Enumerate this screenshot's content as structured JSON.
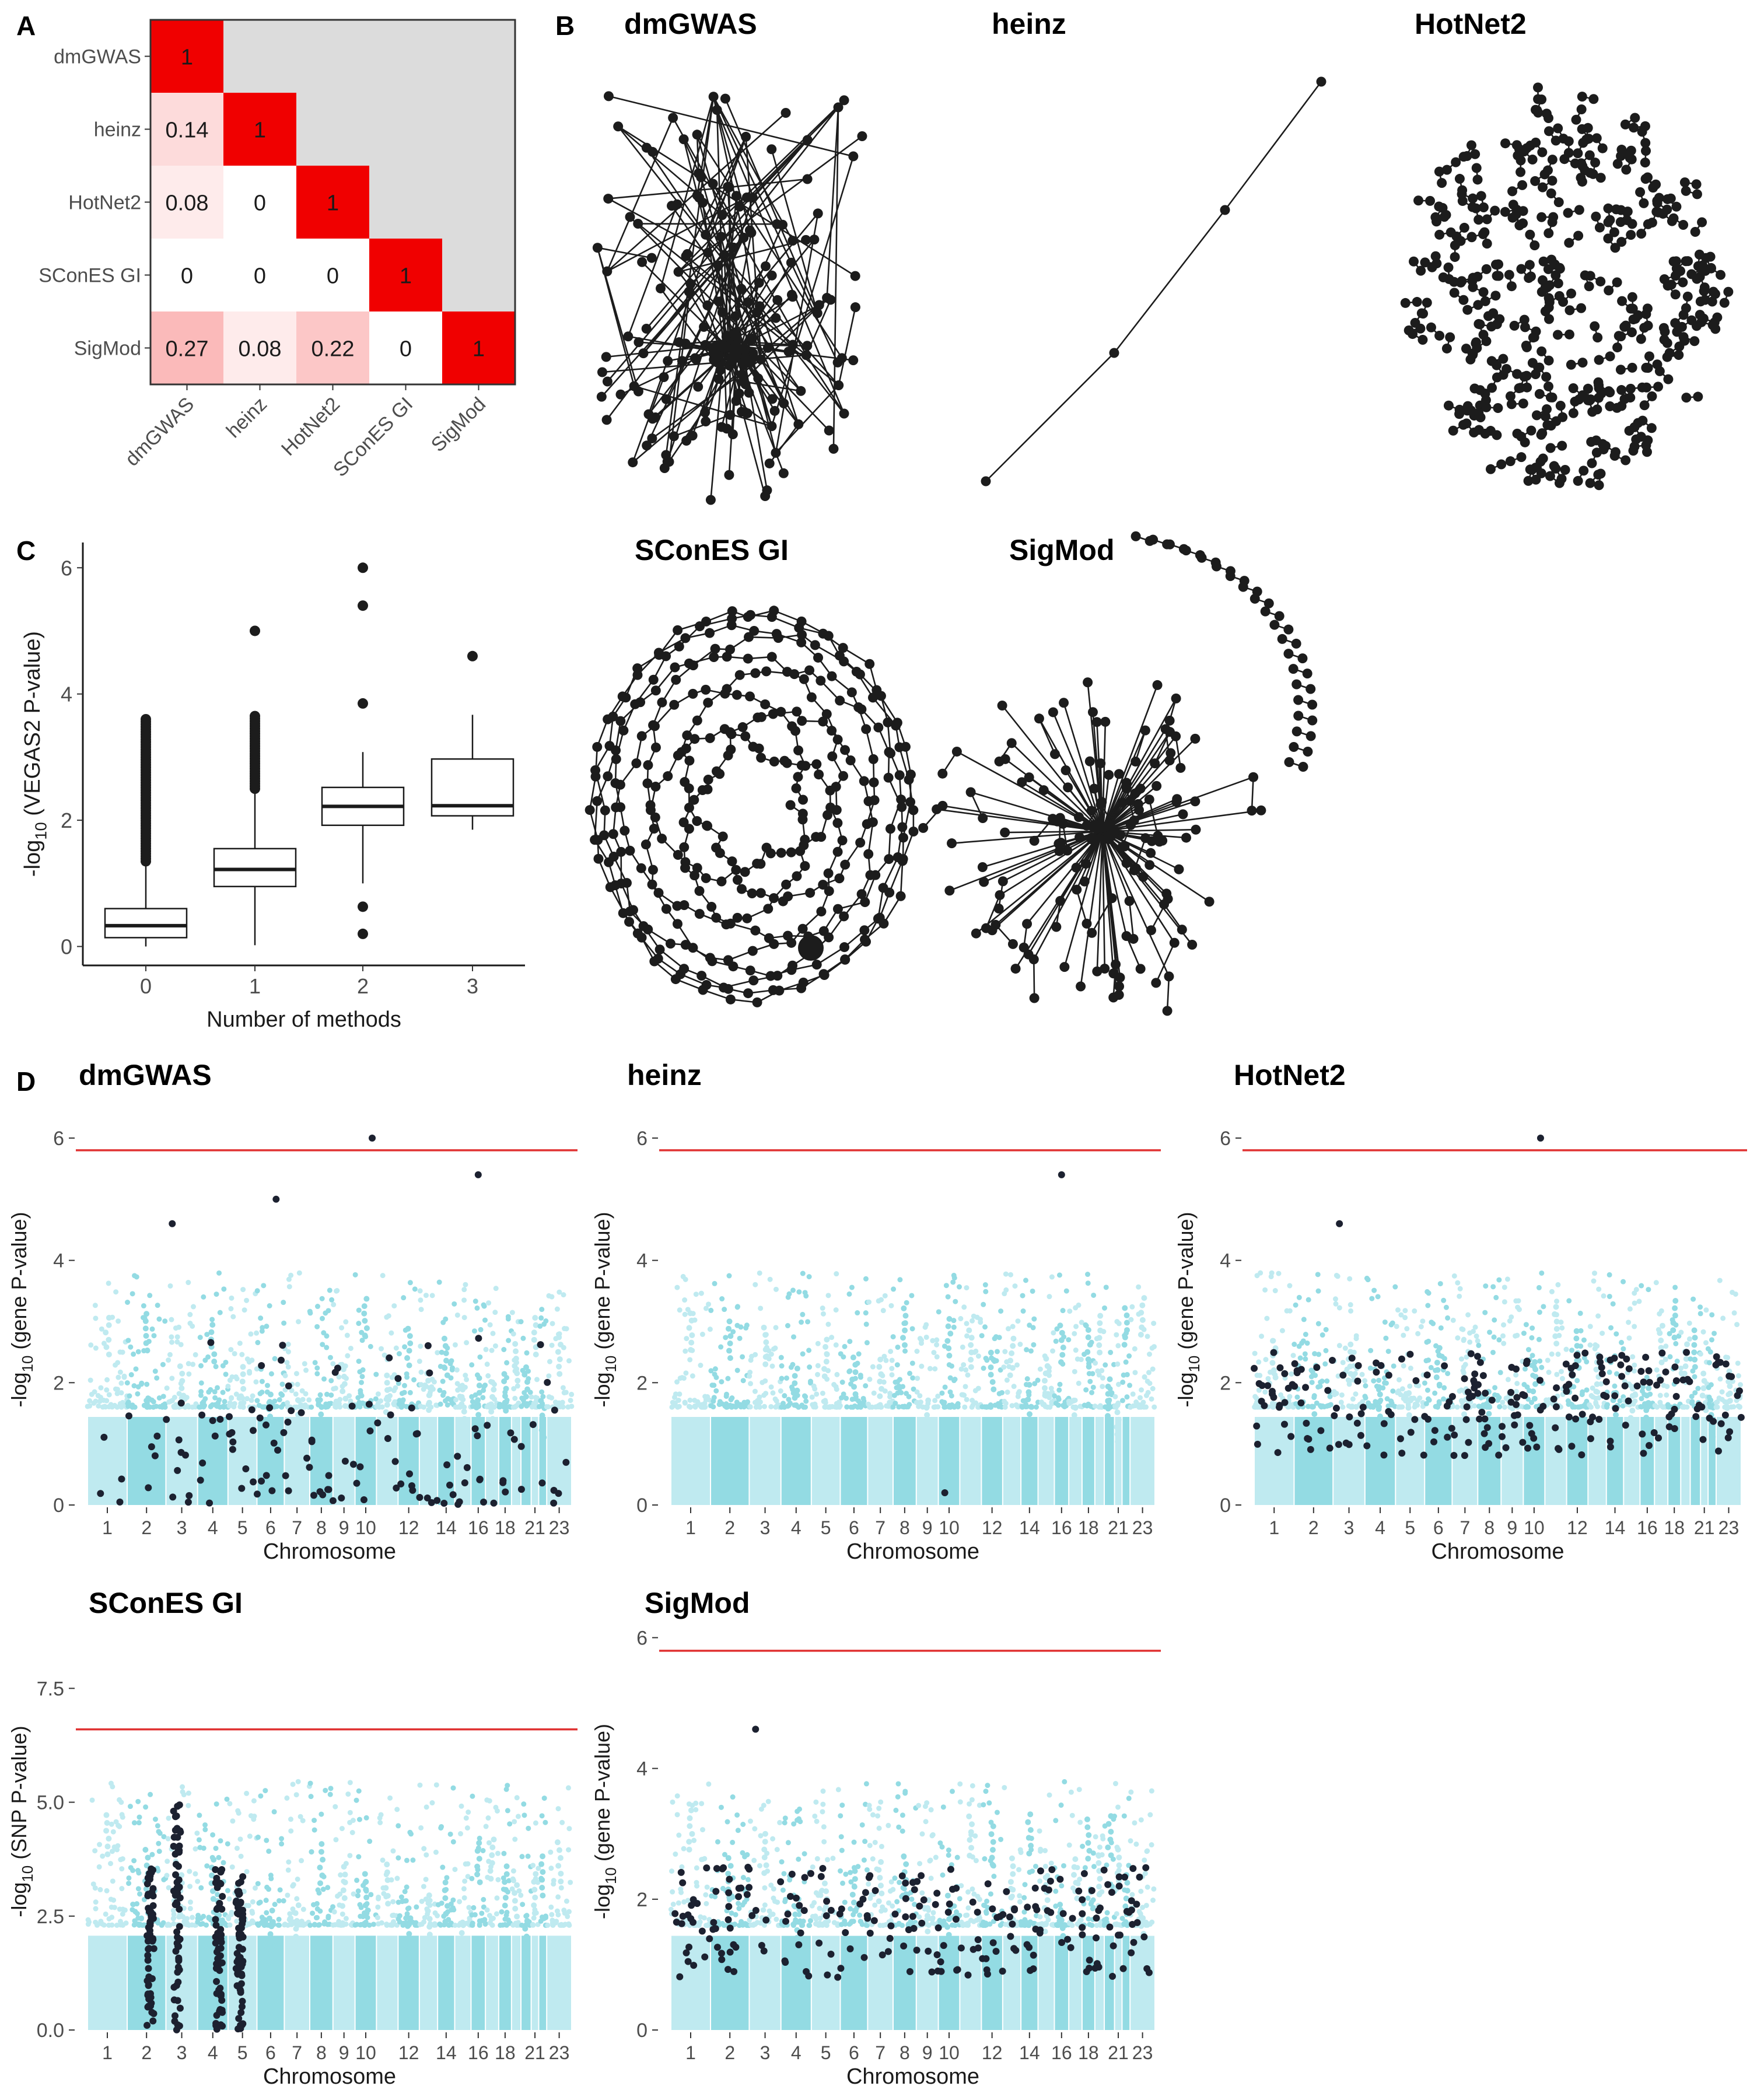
{
  "panel_letters": [
    "A",
    "B",
    "C",
    "D"
  ],
  "colors": {
    "heat_high": "#f00000",
    "heat_low": "#ffffff",
    "heat_na": "#dcdcdc",
    "node": "#1c1c1c",
    "man_light": "#bfeaf0",
    "man_dark": "#93dbe3",
    "highlight": "#1c2130",
    "threshold": "#e03232"
  },
  "chart_data": [
    {
      "type": "heatmap",
      "panel": "A",
      "rows": [
        "dmGWAS",
        "heinz",
        "HotNet2",
        "SConES GI",
        "SigMod"
      ],
      "cols": [
        "dmGWAS",
        "heinz",
        "HotNet2",
        "SConES GI",
        "SigMod"
      ],
      "cells": [
        {
          "r": 0,
          "c": 0,
          "v": 1,
          "label": "1"
        },
        {
          "r": 1,
          "c": 0,
          "v": 0.14,
          "label": "0.14"
        },
        {
          "r": 1,
          "c": 1,
          "v": 1,
          "label": "1"
        },
        {
          "r": 2,
          "c": 0,
          "v": 0.08,
          "label": "0.08"
        },
        {
          "r": 2,
          "c": 1,
          "v": 0,
          "label": "0"
        },
        {
          "r": 2,
          "c": 2,
          "v": 1,
          "label": "1"
        },
        {
          "r": 3,
          "c": 0,
          "v": 0,
          "label": "0"
        },
        {
          "r": 3,
          "c": 1,
          "v": 0,
          "label": "0"
        },
        {
          "r": 3,
          "c": 2,
          "v": 0,
          "label": "0"
        },
        {
          "r": 3,
          "c": 3,
          "v": 1,
          "label": "1"
        },
        {
          "r": 4,
          "c": 0,
          "v": 0.27,
          "label": "0.27"
        },
        {
          "r": 4,
          "c": 1,
          "v": 0.08,
          "label": "0.08"
        },
        {
          "r": 4,
          "c": 2,
          "v": 0.22,
          "label": "0.22"
        },
        {
          "r": 4,
          "c": 3,
          "v": 0,
          "label": "0"
        },
        {
          "r": 4,
          "c": 4,
          "v": 1,
          "label": "1"
        }
      ]
    },
    {
      "type": "box",
      "panel": "B",
      "xlabel": "Number of methods",
      "ylabel_prefix": "-log",
      "ylabel_sub": "10",
      "ylabel_suffix": " (VEGAS2 P-value)",
      "ylim": [
        -0.3,
        6.4
      ],
      "yticks": [
        0,
        2,
        4,
        6
      ],
      "categories": [
        "0",
        "1",
        "2",
        "3"
      ],
      "boxes": [
        {
          "x": "0",
          "q1": 0.14,
          "median": 0.33,
          "q3": 0.6,
          "low": 0.0,
          "high": 1.3,
          "outlier_range": [
            1.35,
            3.6
          ]
        },
        {
          "x": "1",
          "q1": 0.95,
          "median": 1.22,
          "q3": 1.55,
          "low": 0.02,
          "high": 2.45,
          "outlier_range": [
            2.5,
            3.65
          ],
          "extra_outliers": [
            5.0
          ]
        },
        {
          "x": "2",
          "q1": 1.92,
          "median": 2.22,
          "q3": 2.52,
          "low": 1.0,
          "high": 3.08,
          "outliers": [
            0.2,
            0.63,
            3.85,
            5.4,
            6.0
          ]
        },
        {
          "x": "3",
          "q1": 2.07,
          "median": 2.23,
          "q3": 2.97,
          "low": 1.85,
          "high": 3.67,
          "outliers": [
            4.6
          ]
        }
      ]
    },
    {
      "type": "network",
      "panel": "C",
      "graphs": [
        {
          "title": "dmGWAS",
          "layout": "hub",
          "nodes": 170
        },
        {
          "title": "heinz",
          "layout": "chain",
          "nodes": 4
        },
        {
          "title": "HotNet2",
          "layout": "pairs",
          "nodes": 520
        },
        {
          "title": "SConES GI",
          "layout": "ring",
          "nodes": 360
        },
        {
          "title": "SigMod",
          "layout": "star",
          "nodes": 150
        }
      ]
    },
    {
      "type": "scatter",
      "panel": "D",
      "xlabel": "Chromosome",
      "chromosome_ticks": [
        "1",
        "2",
        "3",
        "4",
        "5",
        "6",
        "7",
        "8",
        "9",
        "10",
        "12",
        "14",
        "16",
        "18",
        "21",
        "23"
      ],
      "panels": [
        {
          "title": "dmGWAS",
          "ylabel": "gene P-value",
          "ylim": [
            0,
            6.2
          ],
          "yticks": [
            "0",
            "2",
            "4",
            "6"
          ],
          "threshold": 5.8,
          "highlight": "scattered"
        },
        {
          "title": "heinz",
          "ylabel": "gene P-value",
          "ylim": [
            0,
            6.2
          ],
          "yticks": [
            "0",
            "2",
            "4",
            "6"
          ],
          "threshold": 5.8,
          "highlight": "few"
        },
        {
          "title": "HotNet2",
          "ylabel": "gene P-value",
          "ylim": [
            0,
            6.2
          ],
          "yticks": [
            "0",
            "2",
            "4",
            "6"
          ],
          "threshold": 5.8,
          "highlight": "band"
        },
        {
          "title": "SConES GI",
          "ylabel": "SNP P-value",
          "ylim": [
            0,
            8.9
          ],
          "yticks": [
            "0.0",
            "2.5",
            "5.0",
            "7.5"
          ],
          "threshold": 6.6,
          "highlight": "columns"
        },
        {
          "title": "SigMod",
          "ylabel": "gene P-value",
          "ylim": [
            0,
            6.2
          ],
          "yticks": [
            "0",
            "2",
            "4",
            "6"
          ],
          "threshold": 5.8,
          "highlight": "band"
        }
      ]
    }
  ]
}
